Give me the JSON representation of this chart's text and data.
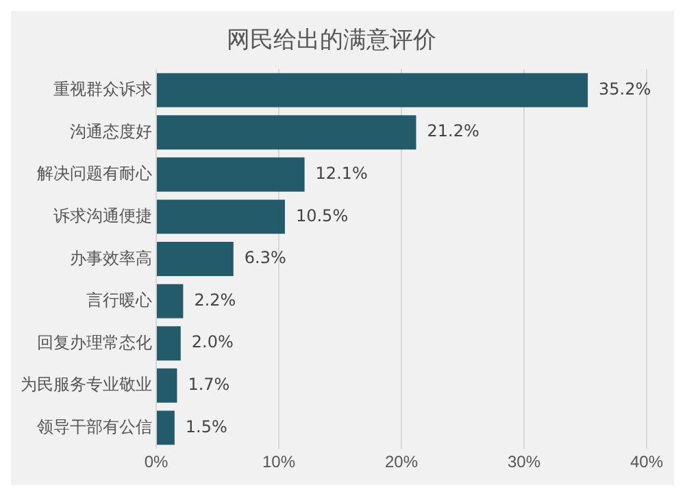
{
  "chart_data": {
    "type": "bar",
    "orientation": "horizontal",
    "title": "网民给出的满意评价",
    "categories": [
      "重视群众诉求",
      "沟通态度好",
      "解决问题有耐心",
      "诉求沟通便捷",
      "办事效率高",
      "言行暖心",
      "回复办理常态化",
      "为民服务专业敬业",
      "领导干部有公信"
    ],
    "values": [
      35.2,
      21.2,
      12.1,
      10.5,
      6.3,
      2.2,
      2.0,
      1.7,
      1.5
    ],
    "value_labels": [
      "35.2%",
      "21.2%",
      "12.1%",
      "10.5%",
      "6.3%",
      "2.2%",
      "2.0%",
      "1.7%",
      "1.5%"
    ],
    "color": "#245b6a",
    "xlim": [
      0,
      40
    ],
    "xticks": [
      {
        "value": 0,
        "label": "0%"
      },
      {
        "value": 10,
        "label": "10%"
      },
      {
        "value": 20,
        "label": "20%"
      },
      {
        "value": 30,
        "label": "30%"
      },
      {
        "value": 40,
        "label": "40%"
      }
    ],
    "grid": "x",
    "legend": false
  }
}
